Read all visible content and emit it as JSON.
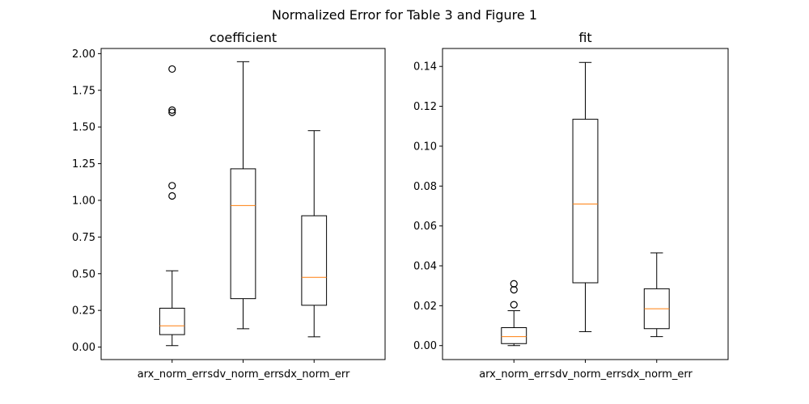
{
  "suptitle": "Normalized Error for Table 3 and Figure 1",
  "colors": {
    "median": "#ff7f0e",
    "box": "#000000",
    "background": "#ffffff"
  },
  "chart_data": [
    {
      "type": "boxplot",
      "title": "coefficient",
      "categories": [
        "arx_norm_err",
        "sdv_norm_err",
        "sdx_norm_err"
      ],
      "ylim": [
        -0.085,
        2.035
      ],
      "yticks": [
        0.0,
        0.25,
        0.5,
        0.75,
        1.0,
        1.25,
        1.5,
        1.75,
        2.0
      ],
      "ytick_labels": [
        "0.00",
        "0.25",
        "0.50",
        "0.75",
        "1.00",
        "1.25",
        "1.50",
        "1.75",
        "2.00"
      ],
      "grid": false,
      "boxes": [
        {
          "whisker_low": 0.01,
          "q1": 0.085,
          "median": 0.145,
          "q3": 0.265,
          "whisker_high": 0.52,
          "outliers": [
            1.03,
            1.1,
            1.6,
            1.615,
            1.895
          ]
        },
        {
          "whisker_low": 0.125,
          "q1": 0.33,
          "median": 0.965,
          "q3": 1.215,
          "whisker_high": 1.945,
          "outliers": []
        },
        {
          "whisker_low": 0.07,
          "q1": 0.285,
          "median": 0.475,
          "q3": 0.895,
          "whisker_high": 1.475,
          "outliers": []
        }
      ]
    },
    {
      "type": "boxplot",
      "title": "fit",
      "categories": [
        "arx_norm_err",
        "sdv_norm_err",
        "sdx_norm_err"
      ],
      "ylim": [
        -0.007,
        0.149
      ],
      "yticks": [
        0.0,
        0.02,
        0.04,
        0.06,
        0.08,
        0.1,
        0.12,
        0.14
      ],
      "ytick_labels": [
        "0.00",
        "0.02",
        "0.04",
        "0.06",
        "0.08",
        "0.10",
        "0.12",
        "0.14"
      ],
      "grid": false,
      "boxes": [
        {
          "whisker_low": 0.0,
          "q1": 0.001,
          "median": 0.0045,
          "q3": 0.009,
          "whisker_high": 0.0175,
          "outliers": [
            0.0205,
            0.028,
            0.031
          ]
        },
        {
          "whisker_low": 0.007,
          "q1": 0.0315,
          "median": 0.071,
          "q3": 0.1135,
          "whisker_high": 0.142,
          "outliers": []
        },
        {
          "whisker_low": 0.0045,
          "q1": 0.0085,
          "median": 0.0185,
          "q3": 0.0285,
          "whisker_high": 0.0465,
          "outliers": []
        }
      ]
    }
  ]
}
